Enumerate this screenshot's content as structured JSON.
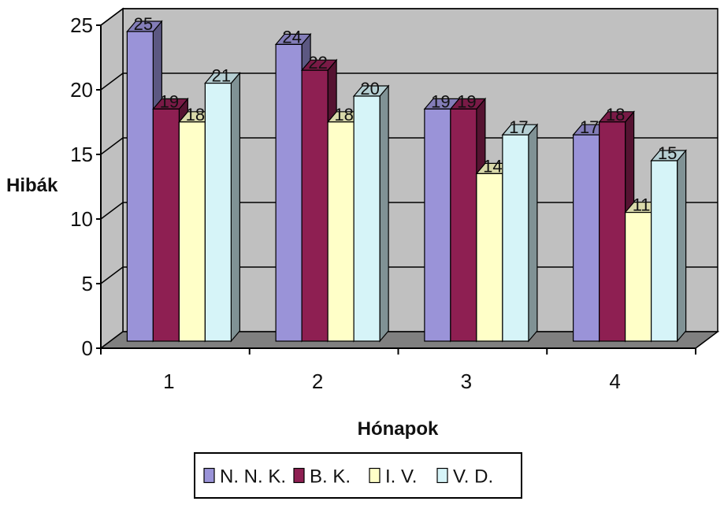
{
  "chart_data": {
    "type": "bar",
    "style": "3d-clustered-column",
    "title": "",
    "xlabel": "Hónapok",
    "ylabel": "Hibák",
    "categories": [
      "1",
      "2",
      "3",
      "4"
    ],
    "ylim": [
      0,
      25
    ],
    "yticks": [
      "0",
      "5",
      "10",
      "15",
      "20",
      "25"
    ],
    "grid": true,
    "legend_position": "bottom",
    "series": [
      {
        "name": "N. N. K.",
        "values": [
          25,
          24,
          19,
          17
        ],
        "color": "#9A93D8"
      },
      {
        "name": "B. K.",
        "values": [
          19,
          22,
          19,
          18
        ],
        "color": "#8E1F52"
      },
      {
        "name": "I. V.",
        "values": [
          18,
          18,
          14,
          11
        ],
        "color": "#FFFFC8"
      },
      {
        "name": "V. D.",
        "values": [
          21,
          20,
          17,
          15
        ],
        "color": "#D6F4F8"
      }
    ],
    "wall_color": "#C0C0C0",
    "floor_color": "#808080"
  }
}
